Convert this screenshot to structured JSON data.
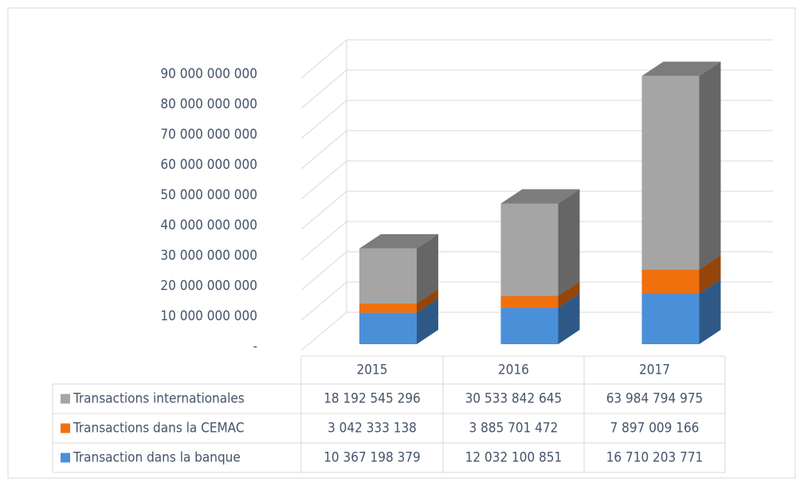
{
  "chart_data": {
    "type": "bar",
    "stacked": true,
    "grid": true,
    "categories": [
      "2015",
      "2016",
      "2017"
    ],
    "series": [
      {
        "name": "Transaction dans la banque",
        "color": "#4a90d9",
        "values": [
          10367198379,
          12032100851,
          16710203771
        ],
        "value_labels": [
          "10 367 198 379",
          "12 032 100 851",
          "16 710 203 771"
        ]
      },
      {
        "name": "Transactions dans la CEMAC",
        "color": "#f0700e",
        "values": [
          3042333138,
          3885701472,
          7897009166
        ],
        "value_labels": [
          "3 042 333 138",
          "3 885 701 472",
          "7 897 009 166"
        ]
      },
      {
        "name": "Transactions internationales",
        "color": "#a5a5a5",
        "values": [
          18192545296,
          30533842645,
          63984794975
        ],
        "value_labels": [
          "18 192 545 296",
          "30 533 842 645",
          "63 984 794 975"
        ]
      }
    ],
    "ylim": [
      0,
      90000000000
    ],
    "yticks": [
      {
        "value": 0,
        "label": "-"
      },
      {
        "value": 10000000000,
        "label": "10 000 000 000"
      },
      {
        "value": 20000000000,
        "label": "20 000 000 000"
      },
      {
        "value": 30000000000,
        "label": "30 000 000 000"
      },
      {
        "value": 40000000000,
        "label": "40 000 000 000"
      },
      {
        "value": 50000000000,
        "label": "50 000 000 000"
      },
      {
        "value": 60000000000,
        "label": "60 000 000 000"
      },
      {
        "value": 70000000000,
        "label": "70 000 000 000"
      },
      {
        "value": 80000000000,
        "label": "80 000 000 000"
      },
      {
        "value": 90000000000,
        "label": "90 000 000 000"
      }
    ]
  }
}
